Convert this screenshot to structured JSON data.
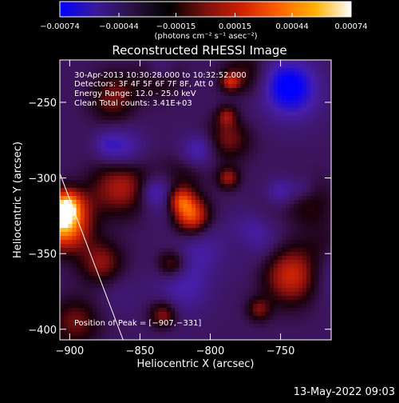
{
  "chart_data": {
    "type": "heatmap",
    "title": "Reconstructed RHESSI Image",
    "xlabel": "Heliocentric X (arcsec)",
    "ylabel": "Heliocentric Y (arcsec)",
    "xlim": [
      -907,
      -714
    ],
    "ylim": [
      -407,
      -222
    ],
    "x_ticks": [
      {
        "value": -900,
        "label": "−900"
      },
      {
        "value": -850,
        "label": "−850"
      },
      {
        "value": -800,
        "label": "−800"
      },
      {
        "value": -750,
        "label": "−750"
      }
    ],
    "y_ticks": [
      {
        "value": -250,
        "label": "−250"
      },
      {
        "value": -300,
        "label": "−300"
      },
      {
        "value": -350,
        "label": "−350"
      },
      {
        "value": -400,
        "label": "−400"
      }
    ],
    "colorbar": {
      "range": [
        -0.00074,
        0.00074
      ],
      "tick_labels": [
        {
          "value": -0.00074,
          "label": "−0.00074"
        },
        {
          "value": -0.00044,
          "label": "−0.00044"
        },
        {
          "value": -0.00015,
          "label": "−0.00015"
        },
        {
          "value": 0.00015,
          "label": "0.00015"
        },
        {
          "value": 0.00044,
          "label": "0.00044"
        },
        {
          "value": 0.00074,
          "label": "0.00074"
        }
      ],
      "unit_label": "(photons cm⁻² s⁻¹ asec⁻²)",
      "colors": [
        "#0000ff",
        "#3a1a9a",
        "#2a1240",
        "#000000",
        "#7a1010",
        "#d02000",
        "#ff6000",
        "#ffb000",
        "#ffffff"
      ]
    },
    "annotations": [
      "30-Apr-2013 10:30:28.000 to 10:32:52.000",
      "Detectors: 3F 4F 5F 6F 7F 8F, Att 0",
      "Energy Range: 12.0 - 25.0 keV",
      "Clean    Total counts: 3.41E+03"
    ],
    "peak_label": "Position of Peak = [−907,−331]",
    "peak": [
      -907,
      -331
    ],
    "limb_line": [
      [
        -907,
        -297
      ],
      [
        -862,
        -407
      ]
    ]
  },
  "footer_timestamp": "13-May-2022 09:03"
}
